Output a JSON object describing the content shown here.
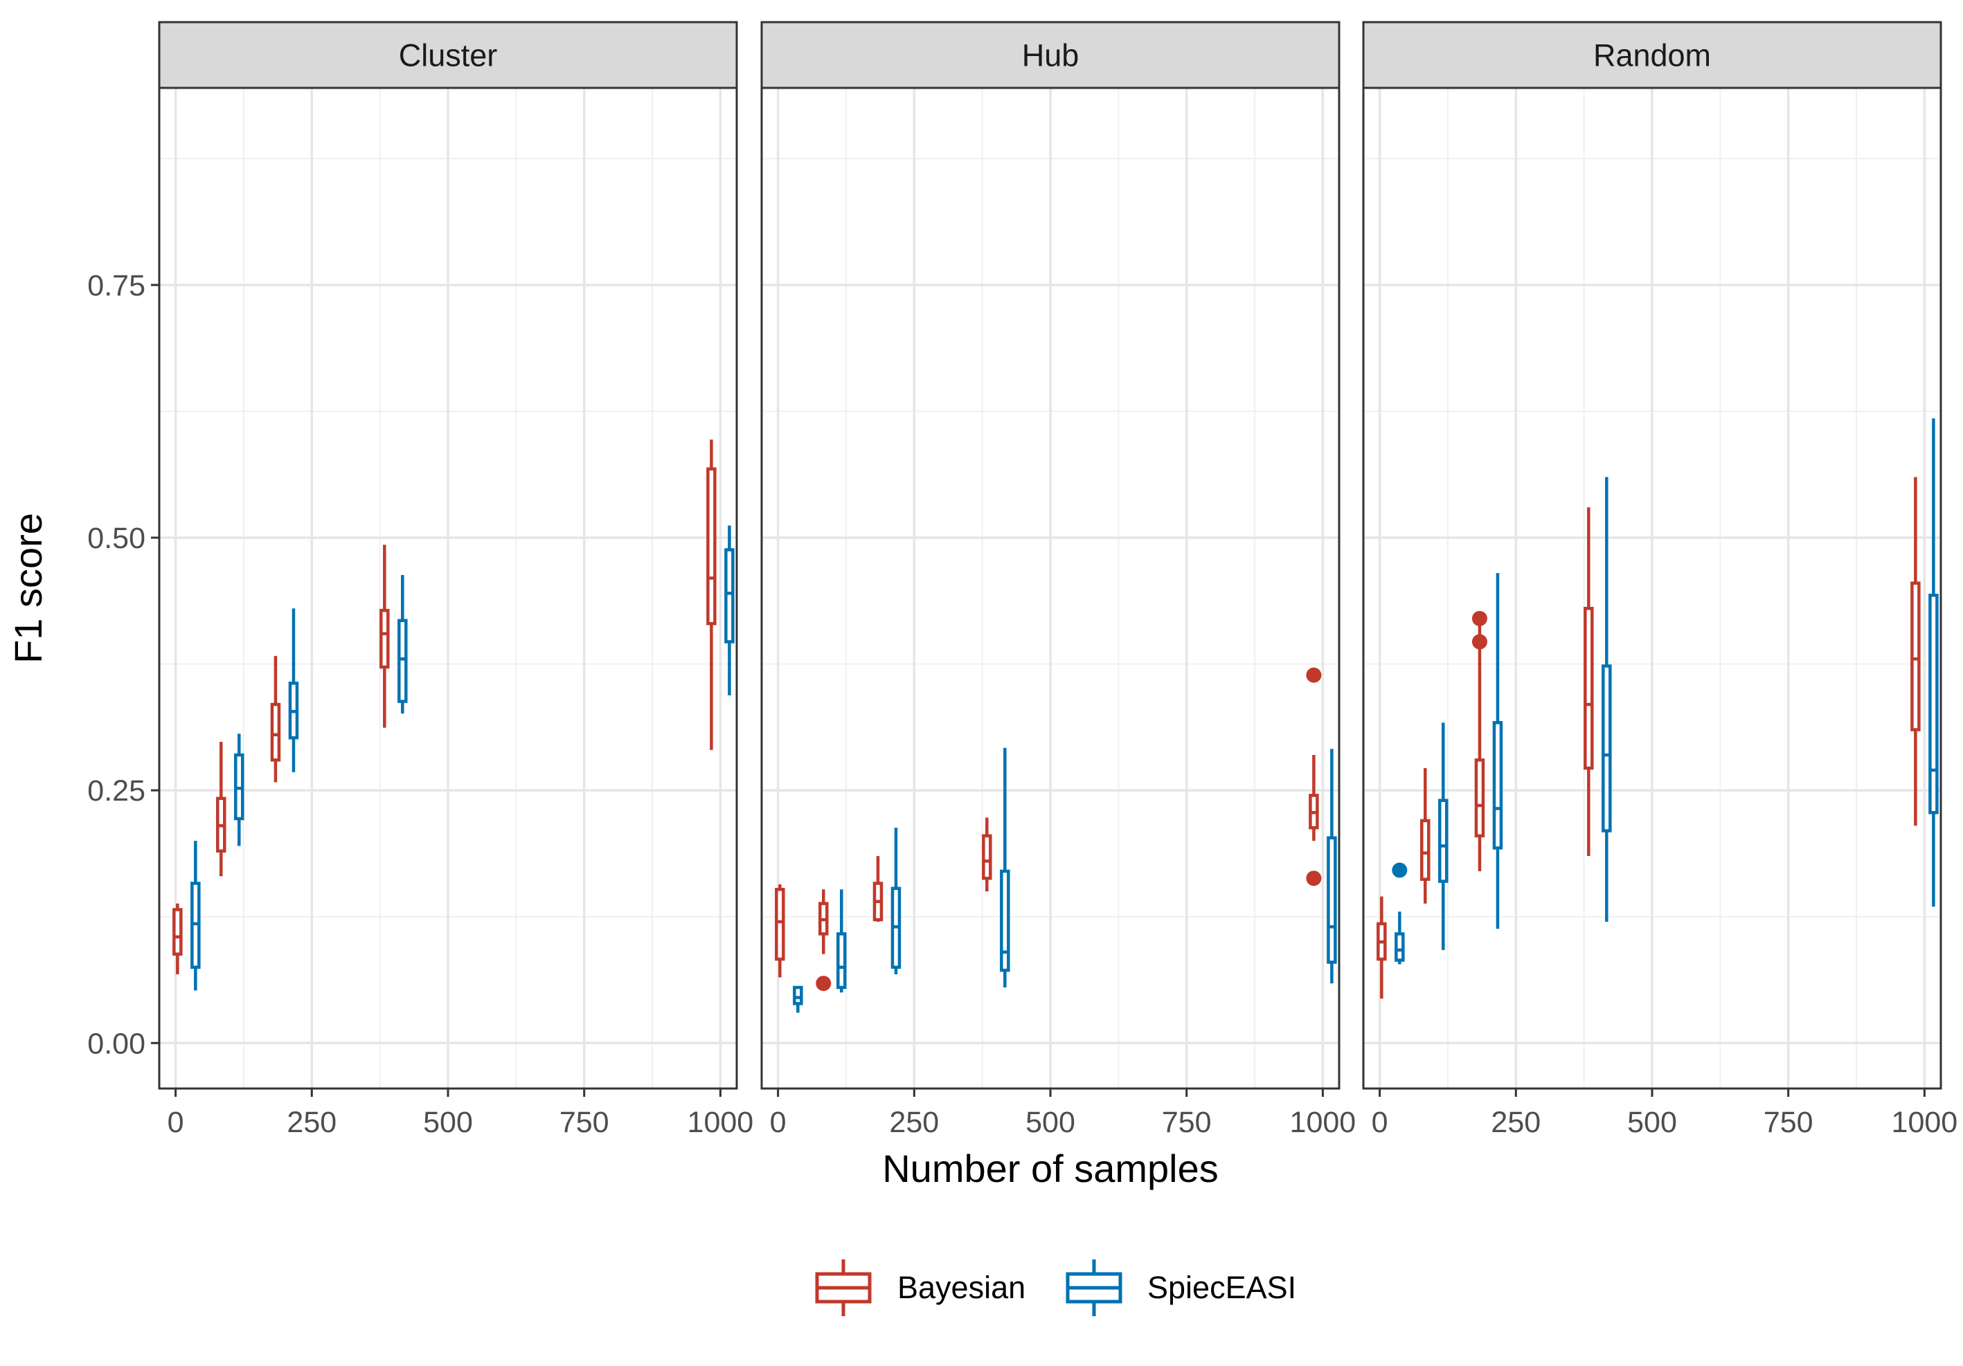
{
  "chart_data": {
    "type": "boxplot",
    "xlabel": "Number of samples",
    "ylabel": "F1 score",
    "xlim": [
      -30,
      1030
    ],
    "ylim": [
      -0.045,
      0.945
    ],
    "x_ticks": [
      0,
      250,
      500,
      750,
      1000
    ],
    "x_tick_labels": [
      "0",
      "250",
      "500",
      "750",
      "1000"
    ],
    "y_ticks": [
      0,
      0.25,
      0.5,
      0.75
    ],
    "y_tick_labels": [
      "0.00",
      "0.25",
      "0.50",
      "0.75"
    ],
    "grid": true,
    "legend_position": "bottom",
    "series": [
      {
        "name": "Bayesian",
        "color": "#c0392b"
      },
      {
        "name": "SpiecEASI",
        "color": "#0072b2"
      }
    ],
    "panels": [
      {
        "title": "Cluster",
        "boxes": [
          {
            "series": "Bayesian",
            "n": 20,
            "min": 0.068,
            "q1": 0.088,
            "median": 0.105,
            "q3": 0.132,
            "max": 0.138,
            "outliers": []
          },
          {
            "series": "SpiecEASI",
            "n": 20,
            "min": 0.052,
            "q1": 0.075,
            "median": 0.118,
            "q3": 0.158,
            "max": 0.2,
            "outliers": []
          },
          {
            "series": "Bayesian",
            "n": 100,
            "min": 0.165,
            "q1": 0.19,
            "median": 0.215,
            "q3": 0.242,
            "max": 0.298,
            "outliers": []
          },
          {
            "series": "SpiecEASI",
            "n": 100,
            "min": 0.195,
            "q1": 0.222,
            "median": 0.252,
            "q3": 0.285,
            "max": 0.306,
            "outliers": []
          },
          {
            "series": "Bayesian",
            "n": 200,
            "min": 0.258,
            "q1": 0.28,
            "median": 0.305,
            "q3": 0.335,
            "max": 0.383,
            "outliers": []
          },
          {
            "series": "SpiecEASI",
            "n": 200,
            "min": 0.268,
            "q1": 0.302,
            "median": 0.328,
            "q3": 0.356,
            "max": 0.43,
            "outliers": []
          },
          {
            "series": "Bayesian",
            "n": 400,
            "min": 0.312,
            "q1": 0.372,
            "median": 0.405,
            "q3": 0.428,
            "max": 0.493,
            "outliers": []
          },
          {
            "series": "SpiecEASI",
            "n": 400,
            "min": 0.326,
            "q1": 0.338,
            "median": 0.38,
            "q3": 0.418,
            "max": 0.463,
            "outliers": []
          },
          {
            "series": "Bayesian",
            "n": 1000,
            "min": 0.29,
            "q1": 0.415,
            "median": 0.46,
            "q3": 0.568,
            "max": 0.597,
            "outliers": []
          },
          {
            "series": "SpiecEASI",
            "n": 1000,
            "min": 0.344,
            "q1": 0.397,
            "median": 0.445,
            "q3": 0.488,
            "max": 0.512,
            "outliers": []
          }
        ]
      },
      {
        "title": "Hub",
        "boxes": [
          {
            "series": "Bayesian",
            "n": 20,
            "min": 0.065,
            "q1": 0.083,
            "median": 0.12,
            "q3": 0.152,
            "max": 0.157,
            "outliers": []
          },
          {
            "series": "SpiecEASI",
            "n": 20,
            "min": 0.03,
            "q1": 0.039,
            "median": 0.045,
            "q3": 0.055,
            "max": 0.056,
            "outliers": []
          },
          {
            "series": "Bayesian",
            "n": 100,
            "min": 0.088,
            "q1": 0.108,
            "median": 0.122,
            "q3": 0.138,
            "max": 0.152,
            "outliers": [
              0.059
            ]
          },
          {
            "series": "SpiecEASI",
            "n": 100,
            "min": 0.05,
            "q1": 0.055,
            "median": 0.075,
            "q3": 0.108,
            "max": 0.152,
            "outliers": []
          },
          {
            "series": "Bayesian",
            "n": 200,
            "min": 0.12,
            "q1": 0.122,
            "median": 0.14,
            "q3": 0.158,
            "max": 0.185,
            "outliers": []
          },
          {
            "series": "SpiecEASI",
            "n": 200,
            "min": 0.068,
            "q1": 0.075,
            "median": 0.115,
            "q3": 0.153,
            "max": 0.213,
            "outliers": []
          },
          {
            "series": "Bayesian",
            "n": 400,
            "min": 0.15,
            "q1": 0.163,
            "median": 0.18,
            "q3": 0.205,
            "max": 0.223,
            "outliers": []
          },
          {
            "series": "SpiecEASI",
            "n": 400,
            "min": 0.055,
            "q1": 0.072,
            "median": 0.09,
            "q3": 0.17,
            "max": 0.292,
            "outliers": []
          },
          {
            "series": "Bayesian",
            "n": 1000,
            "min": 0.2,
            "q1": 0.213,
            "median": 0.228,
            "q3": 0.245,
            "max": 0.285,
            "outliers": [
              0.364,
              0.163
            ]
          },
          {
            "series": "SpiecEASI",
            "n": 1000,
            "min": 0.059,
            "q1": 0.08,
            "median": 0.115,
            "q3": 0.203,
            "max": 0.291,
            "outliers": []
          }
        ]
      },
      {
        "title": "Random",
        "boxes": [
          {
            "series": "Bayesian",
            "n": 20,
            "min": 0.044,
            "q1": 0.083,
            "median": 0.1,
            "q3": 0.118,
            "max": 0.145,
            "outliers": []
          },
          {
            "series": "SpiecEASI",
            "n": 20,
            "min": 0.078,
            "q1": 0.082,
            "median": 0.092,
            "q3": 0.108,
            "max": 0.13,
            "outliers": [
              0.171
            ]
          },
          {
            "series": "Bayesian",
            "n": 100,
            "min": 0.138,
            "q1": 0.162,
            "median": 0.188,
            "q3": 0.22,
            "max": 0.272,
            "outliers": []
          },
          {
            "series": "SpiecEASI",
            "n": 100,
            "min": 0.092,
            "q1": 0.16,
            "median": 0.195,
            "q3": 0.24,
            "max": 0.317,
            "outliers": []
          },
          {
            "series": "Bayesian",
            "n": 200,
            "min": 0.17,
            "q1": 0.205,
            "median": 0.235,
            "q3": 0.28,
            "max": 0.42,
            "outliers": [
              0.42,
              0.397
            ]
          },
          {
            "series": "SpiecEASI",
            "n": 200,
            "min": 0.113,
            "q1": 0.193,
            "median": 0.232,
            "q3": 0.317,
            "max": 0.465,
            "outliers": []
          },
          {
            "series": "Bayesian",
            "n": 400,
            "min": 0.185,
            "q1": 0.272,
            "median": 0.335,
            "q3": 0.43,
            "max": 0.53,
            "outliers": []
          },
          {
            "series": "SpiecEASI",
            "n": 400,
            "min": 0.12,
            "q1": 0.21,
            "median": 0.285,
            "q3": 0.373,
            "max": 0.56,
            "outliers": []
          },
          {
            "series": "Bayesian",
            "n": 1000,
            "min": 0.215,
            "q1": 0.31,
            "median": 0.38,
            "q3": 0.455,
            "max": 0.56,
            "outliers": []
          },
          {
            "series": "SpiecEASI",
            "n": 1000,
            "min": 0.135,
            "q1": 0.228,
            "median": 0.27,
            "q3": 0.443,
            "max": 0.618,
            "outliers": []
          }
        ]
      }
    ]
  }
}
